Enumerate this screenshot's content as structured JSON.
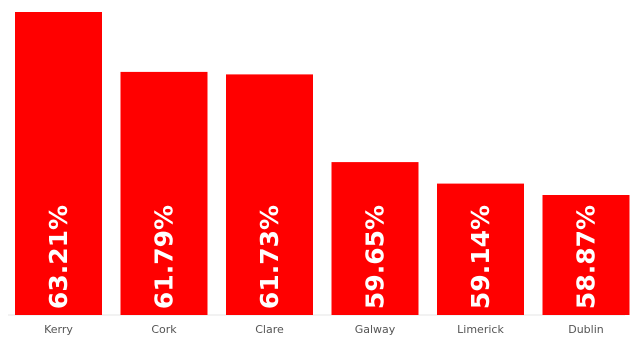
{
  "chart_data": {
    "type": "bar",
    "categories": [
      "Kerry",
      "Cork",
      "Clare",
      "Galway",
      "Limerick",
      "Dublin"
    ],
    "values": [
      63.21,
      61.79,
      61.73,
      59.65,
      59.14,
      58.87
    ],
    "data_labels": [
      "63.21%",
      "61.79%",
      "61.73%",
      "59.65%",
      "59.14%",
      "58.87%"
    ],
    "title": "",
    "xlabel": "",
    "ylabel": "",
    "bar_color": "#ff0000",
    "label_color": "#ffffff",
    "grid": false,
    "legend": "none"
  }
}
